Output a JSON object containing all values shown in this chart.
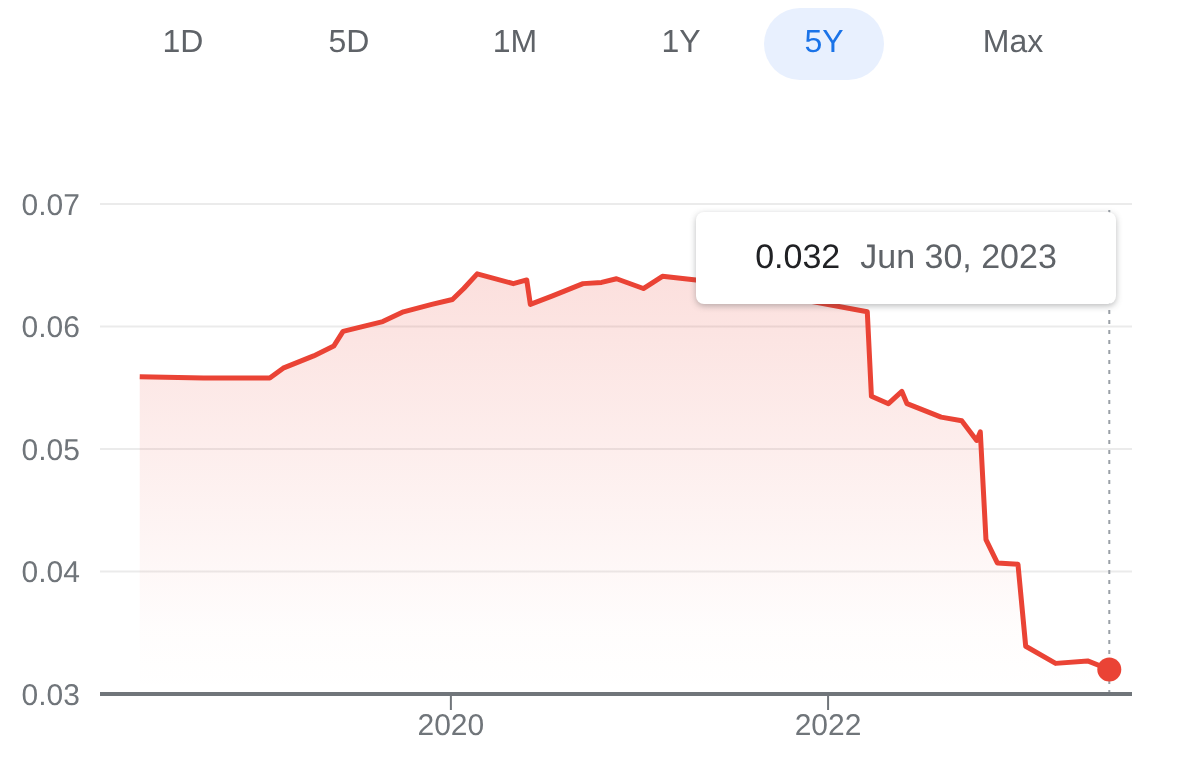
{
  "chart_data": {
    "type": "area",
    "annotations": [
      "1D",
      "5D",
      "1M",
      "1Y",
      "5Y",
      "Max",
      "0.032",
      "Jun 30, 2023"
    ],
    "x": [
      "2018-05-08",
      "2018-09-09",
      "2019-01-15",
      "2019-02-10",
      "2019-04-10",
      "2019-05-19",
      "2019-06-06",
      "2019-08-22",
      "2019-10-01",
      "2019-11-25",
      "2020-01-04",
      "2020-01-26",
      "2020-02-21",
      "2020-05-01",
      "2020-05-27",
      "2020-06-03",
      "2020-07-16",
      "2020-09-13",
      "2020-10-19",
      "2020-11-17",
      "2021-01-08",
      "2021-02-14",
      "2021-04-20",
      "2022-03-18",
      "2022-03-26",
      "2022-04-28",
      "2022-05-24",
      "2022-06-03",
      "2022-08-08",
      "2022-09-17",
      "2022-10-16",
      "2022-10-23",
      "2022-11-03",
      "2022-11-25",
      "2023-01-04",
      "2023-01-19",
      "2023-03-18",
      "2023-05-19",
      "2023-06-30"
    ],
    "series": [
      {
        "color": "#ea4335",
        "values": [
          0.0559,
          0.0558,
          0.0558,
          0.0566,
          0.0576,
          0.0584,
          0.0596,
          0.0604,
          0.0612,
          0.0618,
          0.0622,
          0.0631,
          0.0643,
          0.0635,
          0.0638,
          0.0618,
          0.0625,
          0.0635,
          0.0636,
          0.0639,
          0.0631,
          0.0641,
          0.0638,
          0.0612,
          0.0543,
          0.0537,
          0.0547,
          0.0537,
          0.0526,
          0.0523,
          0.0507,
          0.0514,
          0.0426,
          0.0407,
          0.0406,
          0.0339,
          0.0325,
          0.0327,
          0.032
        ]
      }
    ],
    "xlim": [
      "2018-02-20",
      "2023-08-13"
    ],
    "xticks": [
      "2020",
      "2022"
    ],
    "ylim": [
      0.03,
      0.07
    ],
    "yticks": [
      0.03,
      0.04,
      0.05,
      0.06,
      0.07
    ],
    "ref_lines": [
      {
        "axis": "x",
        "value": "2023-06-30",
        "color": "#9aa0a6",
        "line_style": "dotted"
      }
    ],
    "grid": "y",
    "line_style": "solid"
  }
}
